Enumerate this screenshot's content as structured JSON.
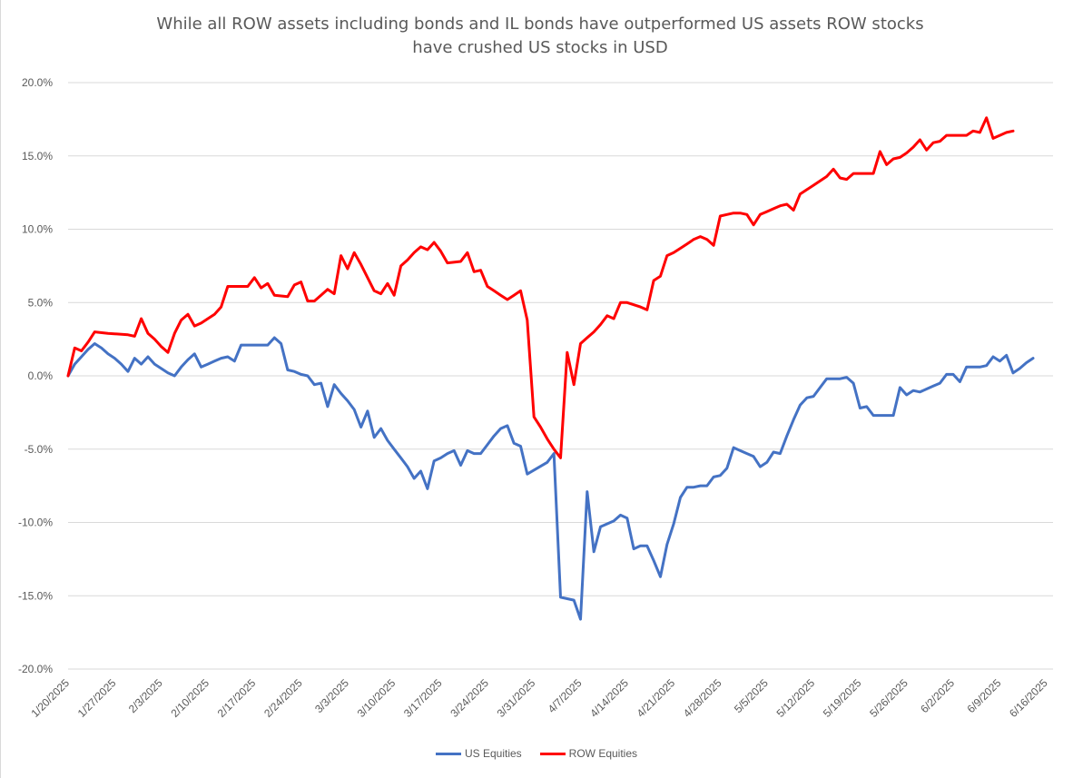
{
  "chart_data": {
    "type": "line",
    "title": "While all ROW assets including bonds and IL bonds have outperformed US assets ROW  stocks",
    "subtitle": "have crushed US stocks in USD",
    "xlabel": "",
    "ylabel": "",
    "ylim": [
      -20,
      20
    ],
    "yticks": [
      "20.0%",
      "15.0%",
      "10.0%",
      "5.0%",
      "0.0%",
      "-5.0%",
      "-10.0%",
      "-15.0%",
      "-20.0%"
    ],
    "x_range": [
      "1/20/2025",
      "6/17/2025"
    ],
    "x_ticks": [
      "1/20/2025",
      "1/27/2025",
      "2/3/2025",
      "2/10/2025",
      "2/17/2025",
      "2/24/2025",
      "3/3/2025",
      "3/10/2025",
      "3/17/2025",
      "3/24/2025",
      "3/31/2025",
      "4/7/2025",
      "4/14/2025",
      "4/21/2025",
      "4/28/2025",
      "5/5/2025",
      "5/12/2025",
      "5/19/2025",
      "5/26/2025",
      "6/2/2025",
      "6/9/2025",
      "6/16/2025"
    ],
    "grid": true,
    "legend_position": "bottom",
    "series": [
      {
        "name": "US Equities",
        "color": "#4472c4",
        "points": [
          [
            "1/20/2025",
            0.0
          ],
          [
            "1/21/2025",
            0.8
          ],
          [
            "1/22/2025",
            1.3
          ],
          [
            "1/23/2025",
            1.8
          ],
          [
            "1/24/2025",
            2.2
          ],
          [
            "1/25/2025",
            1.9
          ],
          [
            "1/26/2025",
            1.5
          ],
          [
            "1/27/2025",
            1.2
          ],
          [
            "1/28/2025",
            0.8
          ],
          [
            "1/29/2025",
            0.3
          ],
          [
            "1/30/2025",
            1.2
          ],
          [
            "1/31/2025",
            0.8
          ],
          [
            "2/1/2025",
            1.3
          ],
          [
            "2/2/2025",
            0.8
          ],
          [
            "2/3/2025",
            0.5
          ],
          [
            "2/4/2025",
            0.2
          ],
          [
            "2/5/2025",
            0.0
          ],
          [
            "2/6/2025",
            0.6
          ],
          [
            "2/7/2025",
            1.1
          ],
          [
            "2/8/2025",
            1.5
          ],
          [
            "2/9/2025",
            0.6
          ],
          [
            "2/10/2025",
            0.8
          ],
          [
            "2/11/2025",
            1.0
          ],
          [
            "2/12/2025",
            1.2
          ],
          [
            "2/13/2025",
            1.3
          ],
          [
            "2/14/2025",
            1.0
          ],
          [
            "2/15/2025",
            2.1
          ],
          [
            "2/16/2025",
            2.1
          ],
          [
            "2/17/2025",
            2.1
          ],
          [
            "2/18/2025",
            2.1
          ],
          [
            "2/19/2025",
            2.1
          ],
          [
            "2/20/2025",
            2.6
          ],
          [
            "2/21/2025",
            2.2
          ],
          [
            "2/22/2025",
            0.4
          ],
          [
            "2/23/2025",
            0.3
          ],
          [
            "2/24/2025",
            0.1
          ],
          [
            "2/25/2025",
            0.0
          ],
          [
            "2/26/2025",
            -0.6
          ],
          [
            "2/27/2025",
            -0.5
          ],
          [
            "2/28/2025",
            -2.1
          ],
          [
            "3/1/2025",
            -0.6
          ],
          [
            "3/2/2025",
            -1.2
          ],
          [
            "3/3/2025",
            -1.7
          ],
          [
            "3/4/2025",
            -2.3
          ],
          [
            "3/5/2025",
            -3.5
          ],
          [
            "3/6/2025",
            -2.4
          ],
          [
            "3/7/2025",
            -4.2
          ],
          [
            "3/8/2025",
            -3.6
          ],
          [
            "3/9/2025",
            -4.4
          ],
          [
            "3/10/2025",
            -5.0
          ],
          [
            "3/11/2025",
            -5.6
          ],
          [
            "3/12/2025",
            -6.2
          ],
          [
            "3/13/2025",
            -7.0
          ],
          [
            "3/14/2025",
            -6.5
          ],
          [
            "3/15/2025",
            -7.7
          ],
          [
            "3/16/2025",
            -5.8
          ],
          [
            "3/17/2025",
            -5.6
          ],
          [
            "3/18/2025",
            -5.3
          ],
          [
            "3/19/2025",
            -5.1
          ],
          [
            "3/20/2025",
            -6.1
          ],
          [
            "3/21/2025",
            -5.1
          ],
          [
            "3/22/2025",
            -5.3
          ],
          [
            "3/23/2025",
            -5.3
          ],
          [
            "3/24/2025",
            -4.7
          ],
          [
            "3/25/2025",
            -4.1
          ],
          [
            "3/26/2025",
            -3.6
          ],
          [
            "3/27/2025",
            -3.4
          ],
          [
            "3/28/2025",
            -4.6
          ],
          [
            "3/29/2025",
            -4.8
          ],
          [
            "3/30/2025",
            -6.7
          ],
          [
            "4/2/2025",
            -5.9
          ],
          [
            "4/3/2025",
            -5.3
          ],
          [
            "4/4/2025",
            -15.1
          ],
          [
            "4/6/2025",
            -15.3
          ],
          [
            "4/7/2025",
            -16.6
          ],
          [
            "4/8/2025",
            -7.9
          ],
          [
            "4/9/2025",
            -12.0
          ],
          [
            "4/10/2025",
            -10.3
          ],
          [
            "4/12/2025",
            -9.9
          ],
          [
            "4/13/2025",
            -9.5
          ],
          [
            "4/14/2025",
            -9.7
          ],
          [
            "4/15/2025",
            -11.8
          ],
          [
            "4/16/2025",
            -11.6
          ],
          [
            "4/17/2025",
            -11.6
          ],
          [
            "4/18/2025",
            -12.6
          ],
          [
            "4/19/2025",
            -13.7
          ],
          [
            "4/20/2025",
            -11.5
          ],
          [
            "4/21/2025",
            -10.1
          ],
          [
            "4/22/2025",
            -8.3
          ],
          [
            "4/23/2025",
            -7.6
          ],
          [
            "4/24/2025",
            -7.6
          ],
          [
            "4/25/2025",
            -7.5
          ],
          [
            "4/26/2025",
            -7.5
          ],
          [
            "4/27/2025",
            -6.9
          ],
          [
            "4/28/2025",
            -6.8
          ],
          [
            "4/29/2025",
            -6.3
          ],
          [
            "4/30/2025",
            -4.9
          ],
          [
            "5/1/2025",
            -5.1
          ],
          [
            "5/2/2025",
            -5.3
          ],
          [
            "5/3/2025",
            -5.5
          ],
          [
            "5/4/2025",
            -6.2
          ],
          [
            "5/5/2025",
            -5.9
          ],
          [
            "5/6/2025",
            -5.2
          ],
          [
            "5/7/2025",
            -5.3
          ],
          [
            "5/8/2025",
            -4.1
          ],
          [
            "5/9/2025",
            -3.0
          ],
          [
            "5/10/2025",
            -2.0
          ],
          [
            "5/11/2025",
            -1.5
          ],
          [
            "5/12/2025",
            -1.4
          ],
          [
            "5/13/2025",
            -0.8
          ],
          [
            "5/14/2025",
            -0.2
          ],
          [
            "5/15/2025",
            -0.2
          ],
          [
            "5/16/2025",
            -0.2
          ],
          [
            "5/17/2025",
            -0.1
          ],
          [
            "5/18/2025",
            -0.5
          ],
          [
            "5/19/2025",
            -2.2
          ],
          [
            "5/20/2025",
            -2.1
          ],
          [
            "5/21/2025",
            -2.7
          ],
          [
            "5/22/2025",
            -2.7
          ],
          [
            "5/23/2025",
            -2.7
          ],
          [
            "5/24/2025",
            -2.7
          ],
          [
            "5/25/2025",
            -0.8
          ],
          [
            "5/26/2025",
            -1.3
          ],
          [
            "5/27/2025",
            -1.0
          ],
          [
            "5/28/2025",
            -1.1
          ],
          [
            "5/29/2025",
            -0.9
          ],
          [
            "5/30/2025",
            -0.7
          ],
          [
            "5/31/2025",
            -0.5
          ],
          [
            "6/1/2025",
            0.1
          ],
          [
            "6/2/2025",
            0.1
          ],
          [
            "6/3/2025",
            -0.4
          ],
          [
            "6/4/2025",
            0.6
          ],
          [
            "6/5/2025",
            0.6
          ],
          [
            "6/6/2025",
            0.6
          ],
          [
            "6/7/2025",
            0.7
          ],
          [
            "6/8/2025",
            1.3
          ],
          [
            "6/9/2025",
            1.0
          ],
          [
            "6/10/2025",
            1.4
          ],
          [
            "6/11/2025",
            0.2
          ],
          [
            "6/12/2025",
            0.5
          ],
          [
            "6/13/2025",
            0.9
          ],
          [
            "6/14/2025",
            1.2
          ]
        ]
      },
      {
        "name": "ROW Equities",
        "color": "#ff0000",
        "points": [
          [
            "1/20/2025",
            0.0
          ],
          [
            "1/21/2025",
            1.9
          ],
          [
            "1/22/2025",
            1.7
          ],
          [
            "1/23/2025",
            2.3
          ],
          [
            "1/24/2025",
            3.0
          ],
          [
            "1/26/2025",
            2.9
          ],
          [
            "1/29/2025",
            2.8
          ],
          [
            "1/30/2025",
            2.7
          ],
          [
            "1/31/2025",
            3.9
          ],
          [
            "2/1/2025",
            2.9
          ],
          [
            "2/2/2025",
            2.5
          ],
          [
            "2/3/2025",
            2.0
          ],
          [
            "2/4/2025",
            1.6
          ],
          [
            "2/5/2025",
            2.9
          ],
          [
            "2/6/2025",
            3.8
          ],
          [
            "2/7/2025",
            4.2
          ],
          [
            "2/8/2025",
            3.4
          ],
          [
            "2/9/2025",
            3.6
          ],
          [
            "2/10/2025",
            3.9
          ],
          [
            "2/11/2025",
            4.2
          ],
          [
            "2/12/2025",
            4.7
          ],
          [
            "2/13/2025",
            6.1
          ],
          [
            "2/14/2025",
            6.1
          ],
          [
            "2/15/2025",
            6.1
          ],
          [
            "2/16/2025",
            6.1
          ],
          [
            "2/17/2025",
            6.7
          ],
          [
            "2/18/2025",
            6.0
          ],
          [
            "2/19/2025",
            6.3
          ],
          [
            "2/20/2025",
            5.5
          ],
          [
            "2/22/2025",
            5.4
          ],
          [
            "2/23/2025",
            6.2
          ],
          [
            "2/24/2025",
            6.4
          ],
          [
            "2/25/2025",
            5.1
          ],
          [
            "2/26/2025",
            5.1
          ],
          [
            "2/27/2025",
            5.5
          ],
          [
            "2/28/2025",
            5.9
          ],
          [
            "3/1/2025",
            5.6
          ],
          [
            "3/2/2025",
            8.2
          ],
          [
            "3/3/2025",
            7.3
          ],
          [
            "3/4/2025",
            8.4
          ],
          [
            "3/5/2025",
            7.6
          ],
          [
            "3/6/2025",
            6.7
          ],
          [
            "3/7/2025",
            5.8
          ],
          [
            "3/8/2025",
            5.6
          ],
          [
            "3/9/2025",
            6.3
          ],
          [
            "3/10/2025",
            5.5
          ],
          [
            "3/11/2025",
            7.5
          ],
          [
            "3/12/2025",
            7.9
          ],
          [
            "3/13/2025",
            8.4
          ],
          [
            "3/14/2025",
            8.8
          ],
          [
            "3/15/2025",
            8.6
          ],
          [
            "3/16/2025",
            9.1
          ],
          [
            "3/17/2025",
            8.5
          ],
          [
            "3/18/2025",
            7.7
          ],
          [
            "3/20/2025",
            7.8
          ],
          [
            "3/21/2025",
            8.4
          ],
          [
            "3/22/2025",
            7.1
          ],
          [
            "3/23/2025",
            7.2
          ],
          [
            "3/24/2025",
            6.1
          ],
          [
            "3/25/2025",
            5.8
          ],
          [
            "3/26/2025",
            5.5
          ],
          [
            "3/27/2025",
            5.2
          ],
          [
            "3/28/2025",
            5.5
          ],
          [
            "3/29/2025",
            5.8
          ],
          [
            "3/30/2025",
            3.8
          ],
          [
            "3/31/2025",
            -2.8
          ],
          [
            "4/1/2025",
            -3.5
          ],
          [
            "4/2/2025",
            -4.3
          ],
          [
            "4/3/2025",
            -5.0
          ],
          [
            "4/4/2025",
            -5.6
          ],
          [
            "4/5/2025",
            1.6
          ],
          [
            "4/6/2025",
            -0.6
          ],
          [
            "4/7/2025",
            2.2
          ],
          [
            "4/8/2025",
            2.6
          ],
          [
            "4/9/2025",
            3.0
          ],
          [
            "4/10/2025",
            3.5
          ],
          [
            "4/11/2025",
            4.1
          ],
          [
            "4/12/2025",
            3.9
          ],
          [
            "4/13/2025",
            5.0
          ],
          [
            "4/14/2025",
            5.0
          ],
          [
            "4/16/2025",
            4.7
          ],
          [
            "4/17/2025",
            4.5
          ],
          [
            "4/18/2025",
            6.5
          ],
          [
            "4/19/2025",
            6.8
          ],
          [
            "4/20/2025",
            8.2
          ],
          [
            "4/21/2025",
            8.4
          ],
          [
            "4/22/2025",
            8.7
          ],
          [
            "4/23/2025",
            9.0
          ],
          [
            "4/24/2025",
            9.3
          ],
          [
            "4/25/2025",
            9.5
          ],
          [
            "4/26/2025",
            9.3
          ],
          [
            "4/27/2025",
            8.9
          ],
          [
            "4/28/2025",
            10.9
          ],
          [
            "4/29/2025",
            11.0
          ],
          [
            "4/30/2025",
            11.1
          ],
          [
            "5/1/2025",
            11.1
          ],
          [
            "5/2/2025",
            11.0
          ],
          [
            "5/3/2025",
            10.3
          ],
          [
            "5/4/2025",
            11.0
          ],
          [
            "5/5/2025",
            11.2
          ],
          [
            "5/6/2025",
            11.4
          ],
          [
            "5/7/2025",
            11.6
          ],
          [
            "5/8/2025",
            11.7
          ],
          [
            "5/9/2025",
            11.3
          ],
          [
            "5/10/2025",
            12.4
          ],
          [
            "5/11/2025",
            12.7
          ],
          [
            "5/12/2025",
            13.0
          ],
          [
            "5/13/2025",
            13.3
          ],
          [
            "5/14/2025",
            13.6
          ],
          [
            "5/15/2025",
            14.1
          ],
          [
            "5/16/2025",
            13.5
          ],
          [
            "5/17/2025",
            13.4
          ],
          [
            "5/18/2025",
            13.8
          ],
          [
            "5/19/2025",
            13.8
          ],
          [
            "5/20/2025",
            13.8
          ],
          [
            "5/21/2025",
            13.8
          ],
          [
            "5/22/2025",
            15.3
          ],
          [
            "5/23/2025",
            14.4
          ],
          [
            "5/24/2025",
            14.8
          ],
          [
            "5/25/2025",
            14.9
          ],
          [
            "5/26/2025",
            15.2
          ],
          [
            "5/27/2025",
            15.6
          ],
          [
            "5/28/2025",
            16.1
          ],
          [
            "5/29/2025",
            15.4
          ],
          [
            "5/30/2025",
            15.9
          ],
          [
            "5/31/2025",
            16.0
          ],
          [
            "6/1/2025",
            16.4
          ],
          [
            "6/2/2025",
            16.4
          ],
          [
            "6/3/2025",
            16.4
          ],
          [
            "6/4/2025",
            16.4
          ],
          [
            "6/5/2025",
            16.7
          ],
          [
            "6/6/2025",
            16.6
          ],
          [
            "6/7/2025",
            17.6
          ],
          [
            "6/8/2025",
            16.2
          ],
          [
            "6/9/2025",
            16.4
          ],
          [
            "6/10/2025",
            16.6
          ],
          [
            "6/11/2025",
            16.7
          ]
        ]
      }
    ]
  }
}
